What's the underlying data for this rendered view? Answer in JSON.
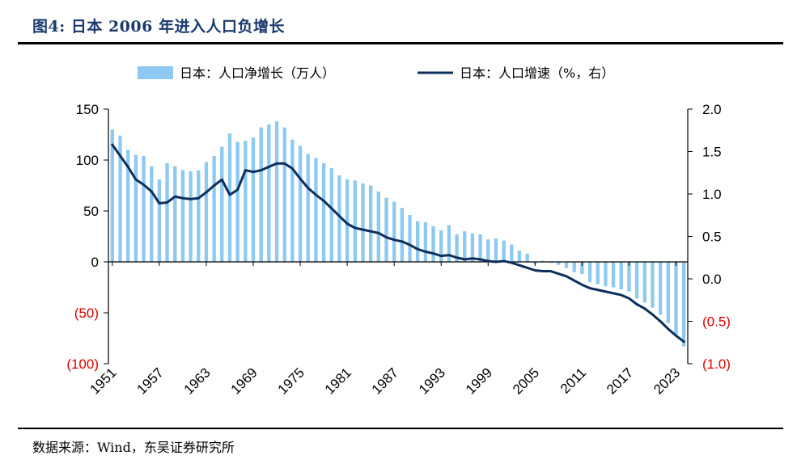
{
  "figure": {
    "title": "图4:  日本 2006 年进入人口负增长",
    "source": "数据来源：Wind，东吴证券研究所"
  },
  "chart_data": {
    "type": "bar+line",
    "title": "日本 2006 年进入人口负增长",
    "x": [
      1951,
      1952,
      1953,
      1954,
      1955,
      1956,
      1957,
      1958,
      1959,
      1960,
      1961,
      1962,
      1963,
      1964,
      1965,
      1966,
      1967,
      1968,
      1969,
      1970,
      1971,
      1972,
      1973,
      1974,
      1975,
      1976,
      1977,
      1978,
      1979,
      1980,
      1981,
      1982,
      1983,
      1984,
      1985,
      1986,
      1987,
      1988,
      1989,
      1990,
      1991,
      1992,
      1993,
      1994,
      1995,
      1996,
      1997,
      1998,
      1999,
      2000,
      2001,
      2002,
      2003,
      2004,
      2005,
      2006,
      2007,
      2008,
      2009,
      2010,
      2011,
      2012,
      2013,
      2014,
      2015,
      2016,
      2017,
      2018,
      2019,
      2020,
      2021,
      2022,
      2023,
      2024
    ],
    "x_tick_labels": [
      "1951",
      "1957",
      "1963",
      "1969",
      "1975",
      "1981",
      "1987",
      "1993",
      "1999",
      "2005",
      "2011",
      "2017",
      "2023"
    ],
    "series": [
      {
        "name": "日本：人口净增长（万人）",
        "kind": "bar",
        "axis": "left",
        "color": "#8ec9f2",
        "values": [
          130,
          124,
          110,
          105,
          104,
          94,
          81,
          97,
          94,
          90,
          89,
          90,
          98,
          104,
          113,
          126,
          118,
          119,
          122,
          132,
          135,
          138,
          132,
          120,
          114,
          106,
          102,
          97,
          92,
          85,
          81,
          80,
          77,
          75,
          69,
          63,
          59,
          53,
          46,
          40,
          39,
          35,
          31,
          36,
          27,
          30,
          28,
          27,
          22,
          23,
          21,
          17,
          11,
          8,
          -2,
          1,
          -1,
          -3,
          -6,
          -10,
          -12,
          -20,
          -22,
          -24,
          -25,
          -27,
          -29,
          -36,
          -40,
          -45,
          -52,
          -60,
          -72,
          -83
        ]
      },
      {
        "name": "日本：人口增速（%，右）",
        "kind": "line",
        "axis": "right",
        "color": "#0c2f5e",
        "values": [
          1.58,
          1.45,
          1.32,
          1.17,
          1.11,
          1.03,
          0.89,
          0.9,
          0.97,
          0.95,
          0.94,
          0.95,
          1.02,
          1.1,
          1.17,
          0.99,
          1.05,
          1.28,
          1.26,
          1.28,
          1.32,
          1.36,
          1.36,
          1.3,
          1.18,
          1.07,
          0.99,
          0.92,
          0.83,
          0.74,
          0.65,
          0.6,
          0.58,
          0.56,
          0.54,
          0.49,
          0.46,
          0.44,
          0.4,
          0.35,
          0.32,
          0.3,
          0.27,
          0.28,
          0.25,
          0.23,
          0.24,
          0.23,
          0.21,
          0.2,
          0.21,
          0.19,
          0.16,
          0.13,
          0.1,
          0.09,
          0.09,
          0.06,
          0.03,
          -0.02,
          -0.07,
          -0.11,
          -0.13,
          -0.15,
          -0.17,
          -0.19,
          -0.23,
          -0.3,
          -0.35,
          -0.42,
          -0.5,
          -0.59,
          -0.67,
          -0.74
        ]
      }
    ],
    "y_left": {
      "min": -100,
      "max": 150,
      "ticks": [
        150,
        100,
        50,
        0,
        -50,
        -100
      ],
      "tick_labels": [
        "150",
        "100",
        "50",
        "0",
        "(50)",
        "(100)"
      ]
    },
    "y_right": {
      "min": -1.0,
      "max": 2.0,
      "ticks": [
        2.0,
        1.5,
        1.0,
        0.5,
        0.0,
        -0.5,
        -1.0
      ],
      "tick_labels": [
        "2.0",
        "1.5",
        "1.0",
        "0.5",
        "0.0",
        "(0.5)",
        "(1.0)"
      ]
    },
    "negative_label_color": "#e00000",
    "legend_position": "top-center"
  }
}
